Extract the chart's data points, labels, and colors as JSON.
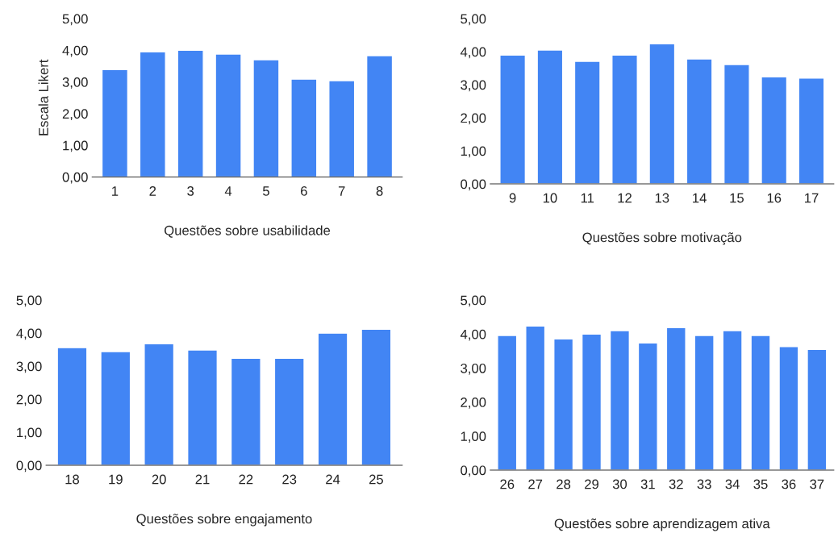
{
  "chart_data": [
    {
      "type": "bar",
      "xlabel": "Questões sobre usabilidade",
      "ylabel": "Escala Likert",
      "categories": [
        "1",
        "2",
        "3",
        "4",
        "5",
        "6",
        "7",
        "8"
      ],
      "values": [
        3.39,
        3.95,
        4.0,
        3.88,
        3.7,
        3.09,
        3.04,
        3.83
      ],
      "color": "#4285f4",
      "ylim": [
        0,
        5
      ],
      "yticks": [
        {
          "value": 0,
          "label": "0,00"
        },
        {
          "value": 1,
          "label": "1,00"
        },
        {
          "value": 2,
          "label": "2,00"
        },
        {
          "value": 3,
          "label": "3,00"
        },
        {
          "value": 4,
          "label": "4,00"
        },
        {
          "value": 5,
          "label": "5,00"
        }
      ],
      "grid": false
    },
    {
      "type": "bar",
      "xlabel": "Questões sobre motivação",
      "categories": [
        "9",
        "10",
        "11",
        "12",
        "13",
        "14",
        "15",
        "16",
        "17"
      ],
      "values": [
        3.9,
        4.05,
        3.71,
        3.9,
        4.24,
        3.78,
        3.61,
        3.24,
        3.2
      ],
      "color": "#4285f4",
      "ylim": [
        0,
        5
      ],
      "yticks": [
        {
          "value": 0,
          "label": "0,00"
        },
        {
          "value": 1,
          "label": "1,00"
        },
        {
          "value": 2,
          "label": "2,00"
        },
        {
          "value": 3,
          "label": "3,00"
        },
        {
          "value": 4,
          "label": "4,00"
        },
        {
          "value": 5,
          "label": "5,00"
        }
      ],
      "grid": false
    },
    {
      "type": "bar",
      "xlabel": "Questões sobre engajamento",
      "categories": [
        "18",
        "19",
        "20",
        "21",
        "22",
        "23",
        "24",
        "25"
      ],
      "values": [
        3.56,
        3.44,
        3.68,
        3.49,
        3.24,
        3.24,
        4.0,
        4.12
      ],
      "color": "#4285f4",
      "ylim": [
        0,
        5
      ],
      "yticks": [
        {
          "value": 0,
          "label": "0,00"
        },
        {
          "value": 1,
          "label": "1,00"
        },
        {
          "value": 2,
          "label": "2,00"
        },
        {
          "value": 3,
          "label": "3,00"
        },
        {
          "value": 4,
          "label": "4,00"
        },
        {
          "value": 5,
          "label": "5,00"
        }
      ],
      "grid": false
    },
    {
      "type": "bar",
      "xlabel": "Questões sobre aprendizagem ativa",
      "categories": [
        "26",
        "27",
        "28",
        "29",
        "30",
        "31",
        "32",
        "33",
        "34",
        "35",
        "36",
        "37"
      ],
      "values": [
        3.96,
        4.24,
        3.86,
        4.0,
        4.1,
        3.74,
        4.19,
        3.96,
        4.1,
        3.96,
        3.63,
        3.55
      ],
      "color": "#4285f4",
      "ylim": [
        0,
        5
      ],
      "yticks": [
        {
          "value": 0,
          "label": "0,00"
        },
        {
          "value": 1,
          "label": "1,00"
        },
        {
          "value": 2,
          "label": "2,00"
        },
        {
          "value": 3,
          "label": "3,00"
        },
        {
          "value": 4,
          "label": "4,00"
        },
        {
          "value": 5,
          "label": "5,00"
        }
      ],
      "grid": false
    }
  ]
}
